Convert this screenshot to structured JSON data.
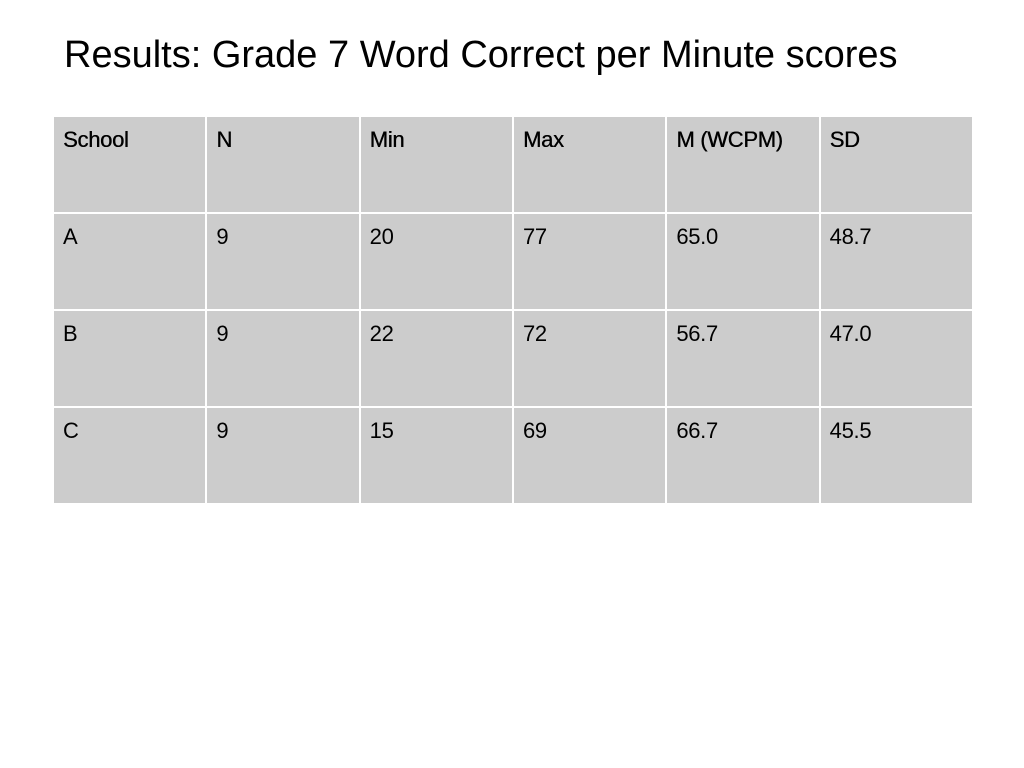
{
  "title": "Results: Grade 7 Word Correct per Minute scores",
  "table": {
    "headers": [
      "School",
      "N",
      "Min",
      "Max",
      "M (WCPM)",
      "SD"
    ],
    "rows": [
      [
        "A",
        "9",
        "20",
        "77",
        "65.0",
        "48.7"
      ],
      [
        "B",
        "9",
        "22",
        "72",
        "56.7",
        "47.0"
      ],
      [
        "C",
        "9",
        "15",
        "69",
        "66.7",
        "45.5"
      ]
    ]
  }
}
